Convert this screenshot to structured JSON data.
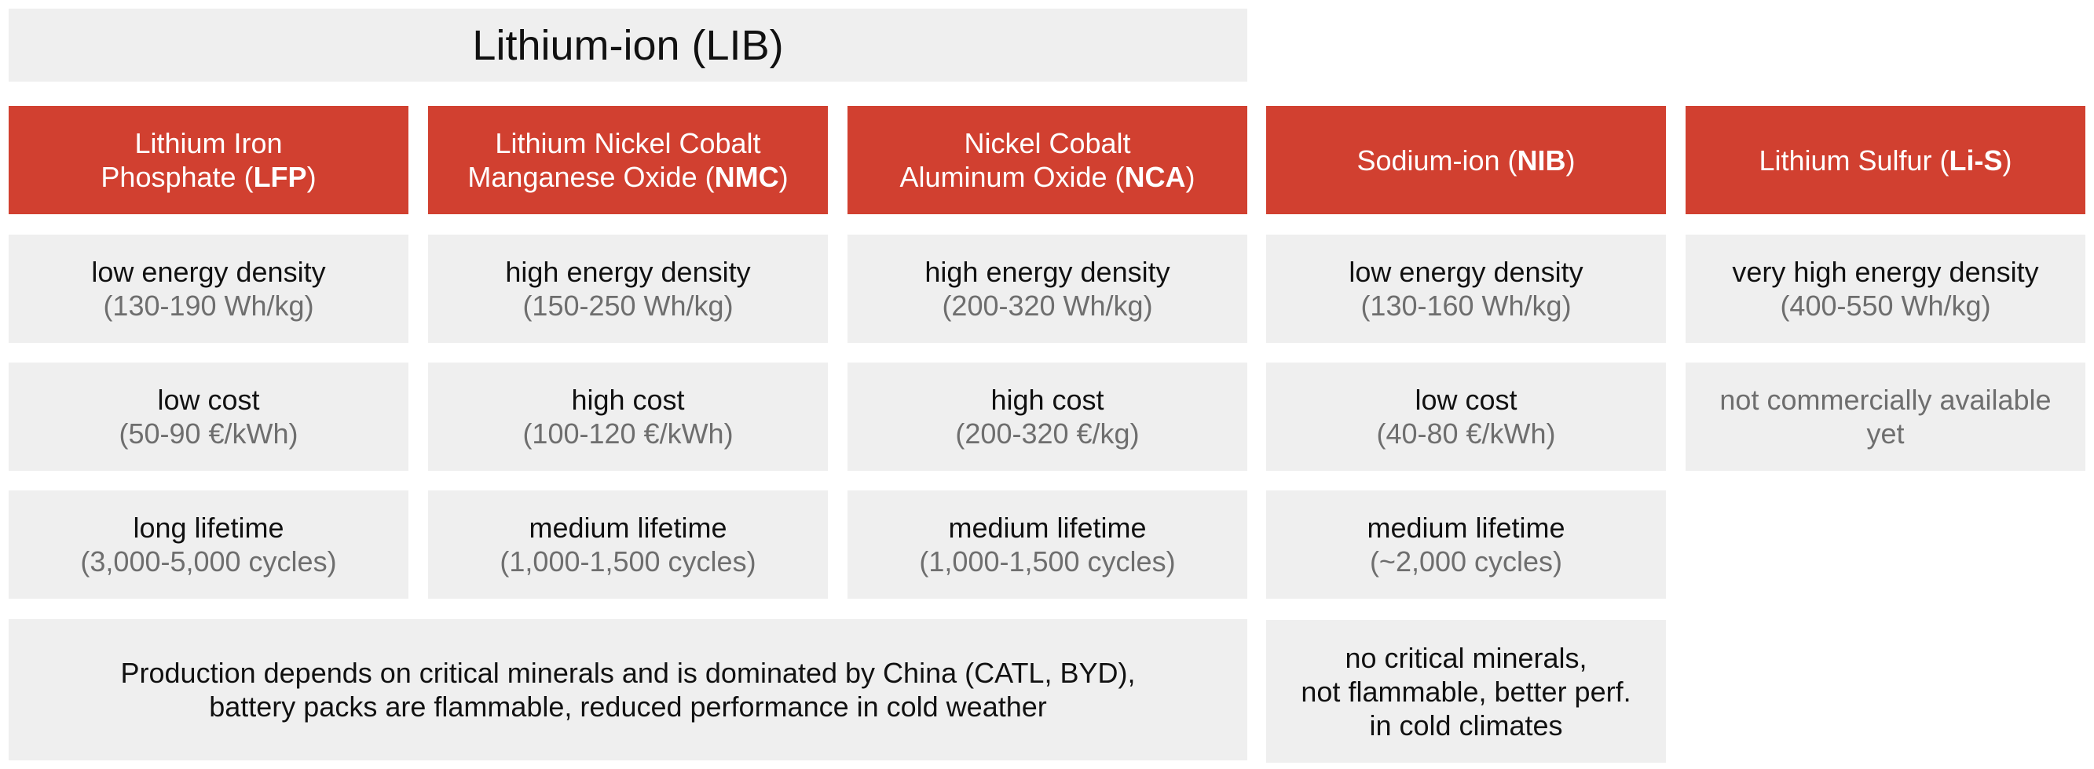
{
  "group_title": "Lithium-ion (LIB)",
  "columns": [
    {
      "header_pre_1": "Lithium Iron",
      "header_pre_2": "Phosphate (",
      "header_abbr": "LFP",
      "header_post": ")",
      "energy": "low energy density",
      "energy_sub": "(130-190 Wh/kg)",
      "cost": "low cost",
      "cost_sub": "(50-90 €/kWh)",
      "lifetime": "long lifetime",
      "lifetime_sub": "(3,000-5,000 cycles)"
    },
    {
      "header_pre_1": "Lithium Nickel Cobalt",
      "header_pre_2": "Manganese Oxide (",
      "header_abbr": "NMC",
      "header_post": ")",
      "energy": "high energy density",
      "energy_sub": "(150-250 Wh/kg)",
      "cost": "high cost",
      "cost_sub": "(100-120 €/kWh)",
      "lifetime": "medium lifetime",
      "lifetime_sub": "(1,000-1,500 cycles)"
    },
    {
      "header_pre_1": "Nickel Cobalt",
      "header_pre_2": "Aluminum Oxide (",
      "header_abbr": "NCA",
      "header_post": ")",
      "energy": "high energy density",
      "energy_sub": "(200-320 Wh/kg)",
      "cost": "high cost",
      "cost_sub": "(200-320 €/kg)",
      "lifetime": "medium lifetime",
      "lifetime_sub": "(1,000-1,500 cycles)"
    },
    {
      "header_pre": "Sodium-ion (",
      "header_abbr": "NIB",
      "header_post": ")",
      "energy": "low energy density",
      "energy_sub": "(130-160 Wh/kg)",
      "cost": "low cost",
      "cost_sub": "(40-80 €/kWh)",
      "lifetime": "medium lifetime",
      "lifetime_sub": "(~2,000 cycles)"
    },
    {
      "header_pre": "Lithium Sulfur (",
      "header_abbr": "Li-S",
      "header_post": ")",
      "energy": "very high energy density",
      "energy_sub": "(400-550 Wh/kg)",
      "availability_1": "not commercially available",
      "availability_2": "yet"
    }
  ],
  "lib_note_1": "Production depends on critical minerals and is dominated by China (CATL, BYD),",
  "lib_note_2": "battery packs are flammable, reduced performance in cold weather",
  "nib_note_1": "no critical minerals,",
  "nib_note_2": "not flammable, better perf.",
  "nib_note_3": "in cold climates",
  "colors": {
    "header_red": "#d14030",
    "cell_grey": "#efefef",
    "subtext_grey": "#6e6e6e"
  }
}
